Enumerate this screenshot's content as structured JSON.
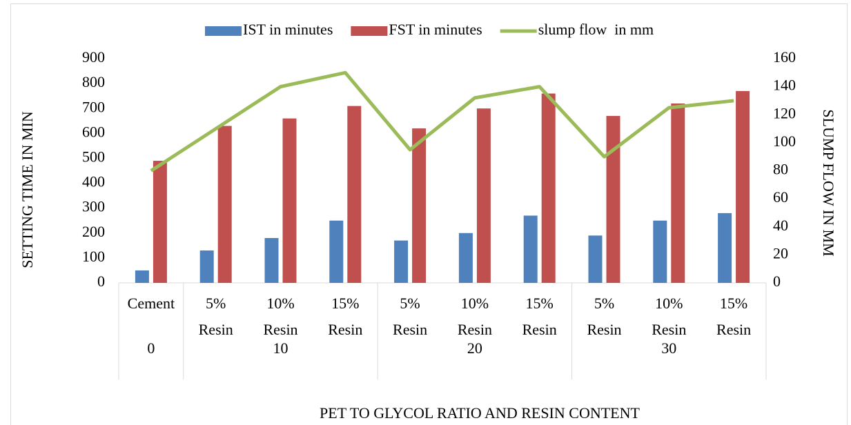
{
  "chart_data": {
    "type": "bar_line",
    "categories": [
      "Cement",
      "5% Resin",
      "10% Resin",
      "15% Resin",
      "5% Resin",
      "10% Resin",
      "15% Resin",
      "5% Resin",
      "10% Resin",
      "15% Resin"
    ],
    "group_labels": [
      "0",
      "10",
      null,
      null,
      "20",
      null,
      null,
      "30",
      null,
      null
    ],
    "series": [
      {
        "name": "IST in minutes",
        "color": "#4f81bd",
        "type": "bar",
        "axis": "y",
        "values": [
          50,
          130,
          180,
          250,
          170,
          200,
          270,
          190,
          250,
          280
        ]
      },
      {
        "name": "FST in minutes",
        "color": "#c0504d",
        "type": "bar",
        "axis": "y",
        "values": [
          490,
          630,
          660,
          710,
          620,
          700,
          760,
          670,
          720,
          770
        ]
      },
      {
        "name": "slump flow  in mm",
        "color": "#9bbb59",
        "type": "line",
        "axis": "y2",
        "values": [
          80,
          110,
          140,
          150,
          95,
          132,
          140,
          90,
          125,
          130
        ]
      }
    ],
    "ylabel": "SETTING TIME IN MIN",
    "y2label": "SLUMP FLOW IN MM",
    "xlabel": "PET TO GLYCOL RATIO AND RESIN CONTENT",
    "ylim": [
      0,
      900
    ],
    "yticks": [
      0,
      100,
      200,
      300,
      400,
      500,
      600,
      700,
      800,
      900
    ],
    "y2lim": [
      0,
      160
    ],
    "y2ticks": [
      0,
      20,
      40,
      60,
      80,
      100,
      120,
      140,
      160
    ],
    "grid": false,
    "legend": "top"
  }
}
